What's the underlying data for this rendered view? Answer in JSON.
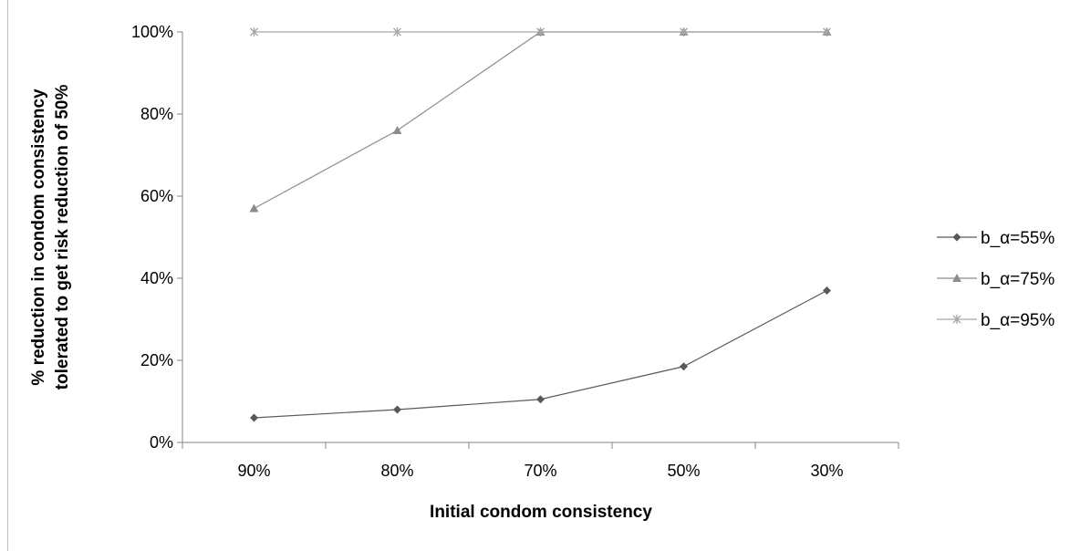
{
  "chart_data": {
    "type": "line",
    "categories": [
      "90%",
      "80%",
      "70%",
      "50%",
      "30%"
    ],
    "series": [
      {
        "name": "b_α=55%",
        "values": [
          6,
          8,
          10.5,
          18.5,
          37
        ],
        "marker": "diamond",
        "color": "#595959"
      },
      {
        "name": "b_α=75%",
        "values": [
          57,
          76,
          100,
          100,
          100
        ],
        "marker": "triangle",
        "color": "#8c8c8c"
      },
      {
        "name": "b_α=95%",
        "values": [
          100,
          100,
          100,
          100,
          100
        ],
        "marker": "star",
        "color": "#a6a6a6"
      }
    ],
    "xlabel": "Initial condom consistency",
    "ylabel_lines": [
      "% reduction in condom consistency",
      "tolerated to get risk reduction of 50%"
    ],
    "ylim": [
      0,
      100
    ],
    "yticks": [
      "0%",
      "20%",
      "40%",
      "60%",
      "80%",
      "100%"
    ],
    "ytick_values": [
      0,
      20,
      40,
      60,
      80,
      100
    ],
    "grid": false,
    "legend_position": "right"
  }
}
